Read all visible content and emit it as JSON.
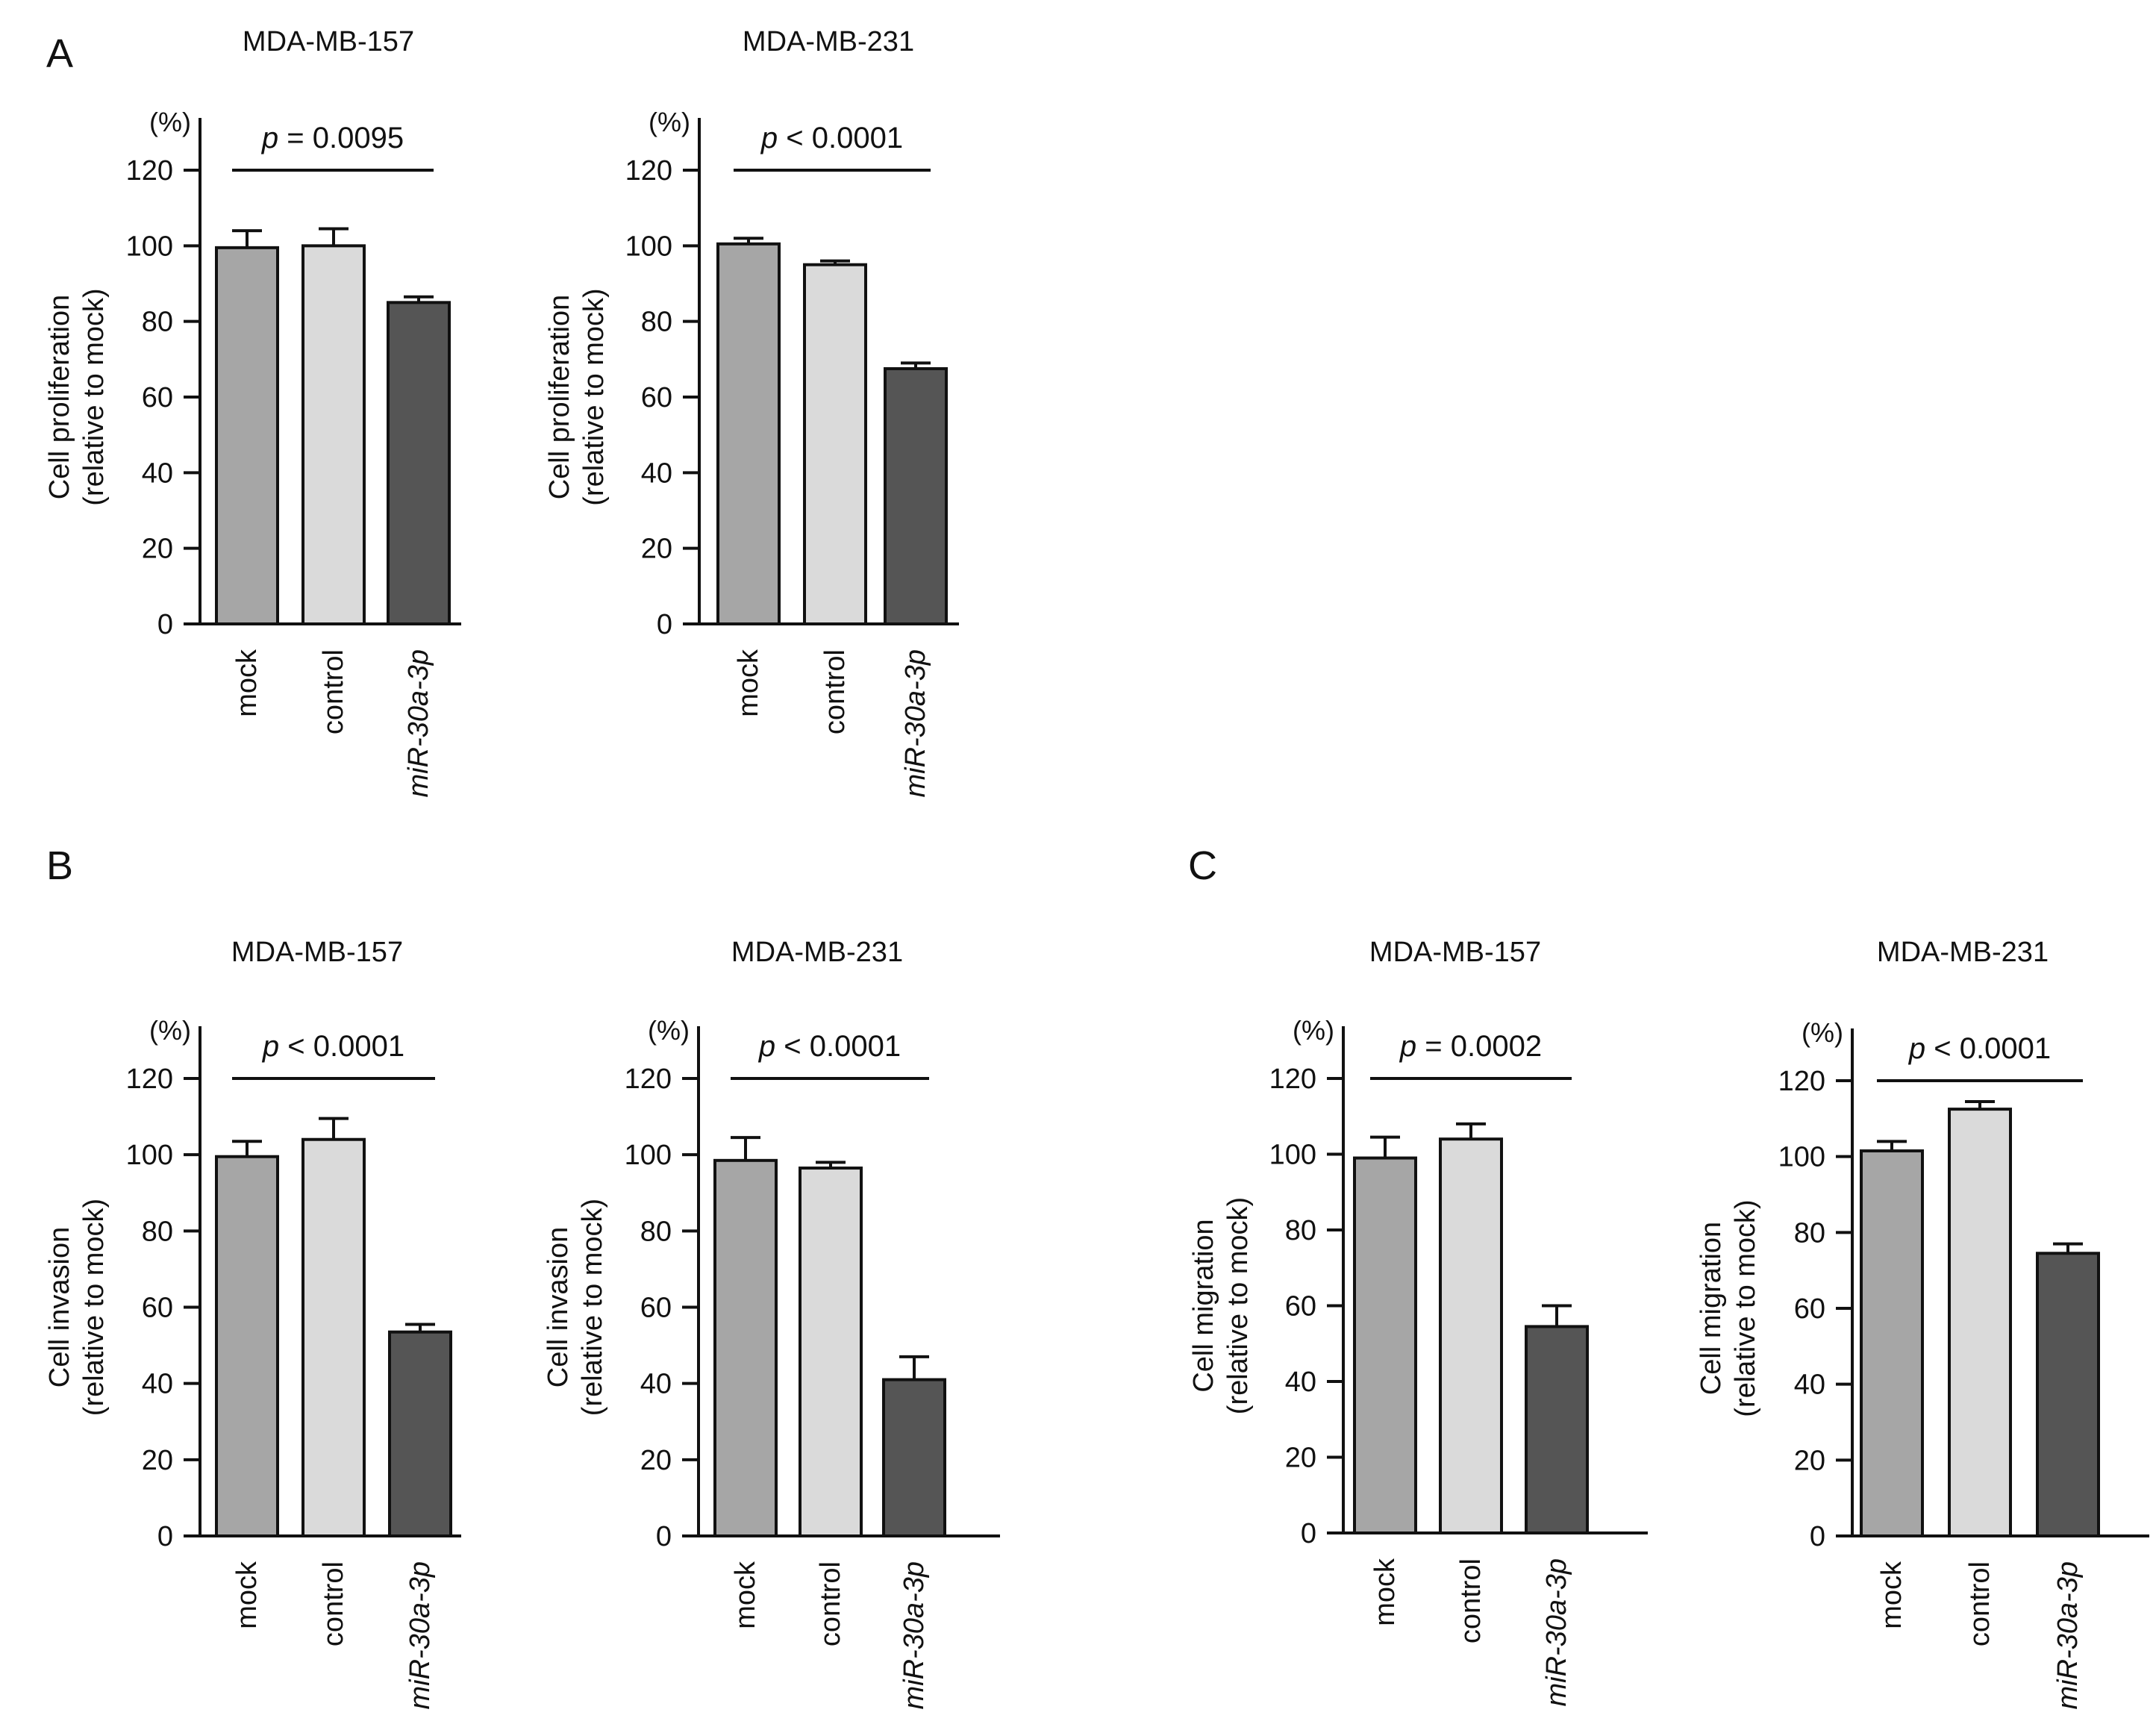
{
  "panels": [
    {
      "letter": "A"
    },
    {
      "letter": "B"
    },
    {
      "letter": "C"
    }
  ],
  "style": {
    "axis_color": "#111111",
    "bar_outline": "#111111",
    "bar_colors": [
      "#a6a6a6",
      "#dadada",
      "#555555"
    ]
  },
  "chart_data": [
    {
      "type": "bar",
      "panel": "A",
      "title": "MDA-MB-157",
      "ylabel": [
        "Cell proliferation",
        "(relative to mock)"
      ],
      "yunit": "(%)",
      "categories": [
        "mock",
        "control",
        "miR-30a-3p"
      ],
      "category_italic": [
        false,
        false,
        true
      ],
      "values": [
        99.5,
        100,
        85
      ],
      "errors": [
        4.5,
        4.5,
        1.5
      ],
      "ylim": [
        0,
        120
      ],
      "yticks": [
        "0",
        "20",
        "40",
        "60",
        "80",
        "100",
        "120"
      ],
      "pvalue": {
        "label": "p",
        "text": " = 0.0095"
      }
    },
    {
      "type": "bar",
      "panel": "A",
      "title": "MDA-MB-231",
      "ylabel": [
        "Cell proliferation",
        "(relative to mock)"
      ],
      "yunit": "(%)",
      "categories": [
        "mock",
        "control",
        "miR-30a-3p"
      ],
      "category_italic": [
        false,
        false,
        true
      ],
      "values": [
        100.5,
        95,
        67.5
      ],
      "errors": [
        1.5,
        1,
        1.5
      ],
      "ylim": [
        0,
        120
      ],
      "yticks": [
        "0",
        "20",
        "40",
        "60",
        "80",
        "100",
        "120"
      ],
      "pvalue": {
        "label": "p",
        "text": " < 0.0001"
      }
    },
    {
      "type": "bar",
      "panel": "B",
      "title": "MDA-MB-157",
      "ylabel": [
        "Cell invasion",
        "(relative to mock)"
      ],
      "yunit": "(%)",
      "categories": [
        "mock",
        "control",
        "miR-30a-3p"
      ],
      "category_italic": [
        false,
        false,
        true
      ],
      "values": [
        99.5,
        104,
        53.5
      ],
      "errors": [
        4,
        5.5,
        2
      ],
      "ylim": [
        0,
        120
      ],
      "yticks": [
        "0",
        "20",
        "40",
        "60",
        "80",
        "100",
        "120"
      ],
      "pvalue": {
        "label": "p",
        "text": " < 0.0001"
      }
    },
    {
      "type": "bar",
      "panel": "B",
      "title": "MDA-MB-231",
      "ylabel": [
        "Cell invasion",
        "(relative to mock)"
      ],
      "yunit": "(%)",
      "categories": [
        "mock",
        "control",
        "miR-30a-3p"
      ],
      "category_italic": [
        false,
        false,
        true
      ],
      "values": [
        98.5,
        96.5,
        41
      ],
      "errors": [
        6,
        1.5,
        6
      ],
      "ylim": [
        0,
        120
      ],
      "yticks": [
        "0",
        "20",
        "40",
        "60",
        "80",
        "100",
        "120"
      ],
      "pvalue": {
        "label": "p",
        "text": " < 0.0001"
      }
    },
    {
      "type": "bar",
      "panel": "C",
      "title": "MDA-MB-157",
      "ylabel": [
        "Cell migration",
        "(relative to mock)"
      ],
      "yunit": "(%)",
      "categories": [
        "mock",
        "control",
        "miR-30a-3p"
      ],
      "category_italic": [
        false,
        false,
        true
      ],
      "values": [
        99,
        104,
        54.5
      ],
      "errors": [
        5.5,
        4,
        5.5
      ],
      "ylim": [
        0,
        120
      ],
      "yticks": [
        "0",
        "20",
        "40",
        "60",
        "80",
        "100",
        "120"
      ],
      "pvalue": {
        "label": "p",
        "text": " = 0.0002"
      }
    },
    {
      "type": "bar",
      "panel": "C",
      "title": "MDA-MB-231",
      "ylabel": [
        "Cell migration",
        "(relative to mock)"
      ],
      "yunit": "(%)",
      "categories": [
        "mock",
        "control",
        "miR-30a-3p"
      ],
      "category_italic": [
        false,
        false,
        true
      ],
      "values": [
        101.5,
        112.5,
        74.5
      ],
      "errors": [
        2.5,
        2,
        2.5
      ],
      "ylim": [
        0,
        120
      ],
      "yticks": [
        "0",
        "20",
        "40",
        "60",
        "80",
        "100",
        "120"
      ],
      "pvalue": {
        "label": "p",
        "text": " < 0.0001"
      }
    }
  ]
}
